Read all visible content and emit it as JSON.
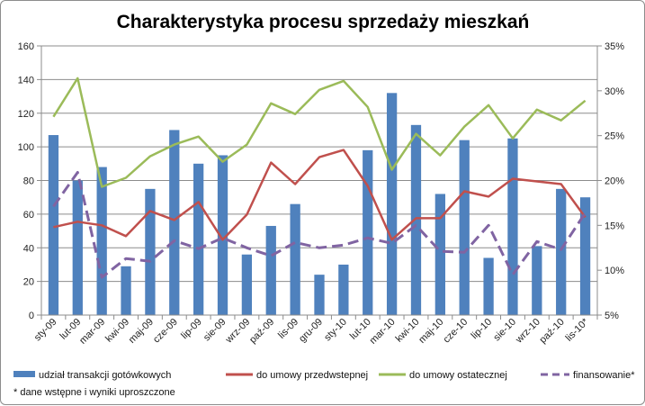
{
  "chart_data": {
    "type": "bar+line",
    "title": "Charakterystyka procesu sprzedaży mieszkań",
    "categories": [
      "sty-09",
      "lut-09",
      "mar-09",
      "kwi-09",
      "maj-09",
      "cze-09",
      "lip-09",
      "sie-09",
      "wrz-09",
      "paź-09",
      "lis-09",
      "gru-09",
      "sty-10",
      "lut-10",
      "mar-10",
      "kwi-10",
      "maj-10",
      "cze-10",
      "lip-10",
      "sie-10",
      "wrz-10",
      "paź-10",
      "lis-10*"
    ],
    "y_left": {
      "min": 0,
      "max": 160,
      "step": 20,
      "tick_labels": [
        "0",
        "20",
        "40",
        "60",
        "80",
        "100",
        "120",
        "140",
        "160"
      ]
    },
    "y_right": {
      "min": 5,
      "max": 35,
      "step": 5,
      "tick_labels": [
        "5%",
        "10%",
        "15%",
        "20%",
        "25%",
        "30%",
        "35%"
      ]
    },
    "series": [
      {
        "name": "udział transakcji gotówkowych",
        "type": "bar",
        "axis": "left",
        "color": "#4f81bd",
        "values": [
          107,
          80,
          88,
          29,
          75,
          110,
          90,
          95,
          36,
          53,
          66,
          24,
          30,
          98,
          132,
          113,
          72,
          104,
          34,
          105,
          41,
          75,
          70
        ]
      },
      {
        "name": "do umowy przedwstepnej",
        "type": "line",
        "axis": "right",
        "color": "#c0504d",
        "values": [
          14.8,
          15.4,
          15.0,
          13.8,
          16.6,
          15.6,
          17.6,
          13.4,
          16.2,
          22.0,
          19.6,
          22.6,
          23.4,
          19.4,
          13.4,
          15.8,
          15.8,
          18.8,
          18.2,
          20.2,
          19.9,
          19.6,
          15.9
        ]
      },
      {
        "name": "do umowy ostatecznej",
        "type": "line",
        "axis": "right",
        "color": "#9bbb59",
        "values": [
          27.1,
          31.4,
          19.3,
          20.3,
          22.7,
          24.0,
          24.9,
          22.1,
          24.0,
          28.6,
          27.4,
          30.1,
          31.1,
          28.2,
          21.2,
          25.2,
          22.8,
          26.0,
          28.4,
          24.7,
          27.9,
          26.7,
          28.9
        ]
      },
      {
        "name": "finansowanie*",
        "type": "line",
        "axis": "right",
        "color": "#8064a2",
        "dashed": true,
        "values": [
          17.1,
          20.9,
          9.2,
          11.3,
          11.0,
          13.3,
          12.4,
          13.6,
          12.5,
          11.6,
          13.1,
          12.5,
          12.8,
          13.6,
          13.0,
          15.0,
          12.1,
          12.0,
          15.0,
          9.5,
          13.2,
          12.3,
          16.4
        ]
      }
    ],
    "legend_position": "bottom",
    "footnote": "* dane wstępne i wyniki uproszczone"
  }
}
